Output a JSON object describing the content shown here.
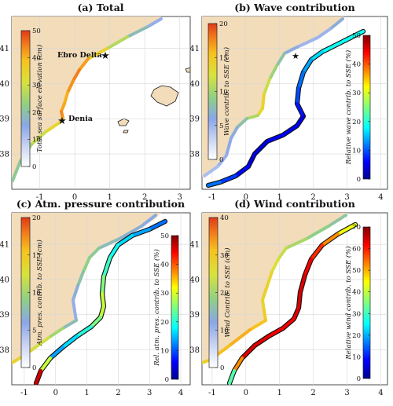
{
  "chart_data": [
    {
      "type": "map",
      "title": "(a) Total",
      "xlim": [
        -1.8,
        3.3
      ],
      "ylim": [
        37.0,
        41.9
      ],
      "xticks": [
        "-1",
        "0",
        "1",
        "2",
        "3"
      ],
      "yticks": [
        "38",
        "39",
        "40",
        "41"
      ],
      "colorbars": [
        {
          "label": "Total sea surface elevation (cm)",
          "range": [
            0,
            50
          ],
          "ticks": [
            "0",
            "10",
            "20",
            "30",
            "40",
            "50"
          ],
          "colormap": "white-blue-green-yellow-red"
        }
      ],
      "annotations": [
        {
          "label": "Ebro Delta",
          "lon": 0.85,
          "lat": 40.72
        },
        {
          "label": "Denia",
          "lon": 0.1,
          "lat": 38.82
        }
      ]
    },
    {
      "type": "map",
      "title": "(b) Wave contribution",
      "xlim": [
        -1.3,
        4.2
      ],
      "ylim": [
        37.0,
        41.9
      ],
      "xticks": [
        "-1",
        "0",
        "1",
        "2",
        "3",
        "4"
      ],
      "yticks": [
        "38",
        "39",
        "40",
        "41"
      ],
      "colorbars": [
        {
          "label": "Wave contrib. to SSE (cm)",
          "range": [
            0,
            20
          ],
          "ticks": [
            "0",
            "5",
            "10",
            "15",
            "20"
          ],
          "colormap": "white-blue-green-yellow-red"
        },
        {
          "label": "Relative wave contrib. to SSE (%)",
          "range": [
            0,
            50
          ],
          "ticks": [
            "0",
            "10",
            "20",
            "30",
            "40",
            "50"
          ],
          "colormap": "jet"
        }
      ]
    },
    {
      "type": "map",
      "title": "(c) Atm. pressure contribution",
      "xlim": [
        -1.4,
        4.3
      ],
      "ylim": [
        37.0,
        41.9
      ],
      "xticks": [
        "-1",
        "0",
        "1",
        "2",
        "3",
        "4"
      ],
      "yticks": [
        "38",
        "39",
        "40",
        "41"
      ],
      "colorbars": [
        {
          "label": "Atm. pres. contrib. to SSE (cm)",
          "range": [
            0,
            20
          ],
          "ticks": [
            "0",
            "5",
            "10",
            "15",
            "20"
          ],
          "colormap": "white-blue-green-yellow-red"
        },
        {
          "label": "Rel. atm. pres. contrib. to SSE (%)",
          "range": [
            0,
            50
          ],
          "ticks": [
            "0",
            "10",
            "20",
            "30",
            "40",
            "50"
          ],
          "colormap": "jet"
        }
      ]
    },
    {
      "type": "map",
      "title": "(d) Wind contribution",
      "xlim": [
        -1.3,
        4.2
      ],
      "ylim": [
        37.0,
        41.9
      ],
      "xticks": [
        "-1",
        "0",
        "1",
        "2",
        "3",
        "4"
      ],
      "yticks": [
        "38",
        "39",
        "40",
        "41"
      ],
      "colorbars": [
        {
          "label": "Wind Contrib. to SSE (cm)",
          "range": [
            0,
            40
          ],
          "ticks": [
            "0",
            "10",
            "20",
            "30",
            "40"
          ],
          "colormap": "white-blue-green-yellow-red"
        },
        {
          "label": "Relative wind contrib. to SSE (%)",
          "range": [
            0,
            70
          ],
          "ticks": [
            "0",
            "10",
            "20",
            "30",
            "40",
            "50",
            "60",
            "70"
          ],
          "colormap": "jet"
        }
      ]
    }
  ],
  "colors": {
    "land": "#f2dcba",
    "grid": "#d8d8d8",
    "coast": "#1a1a1a"
  }
}
